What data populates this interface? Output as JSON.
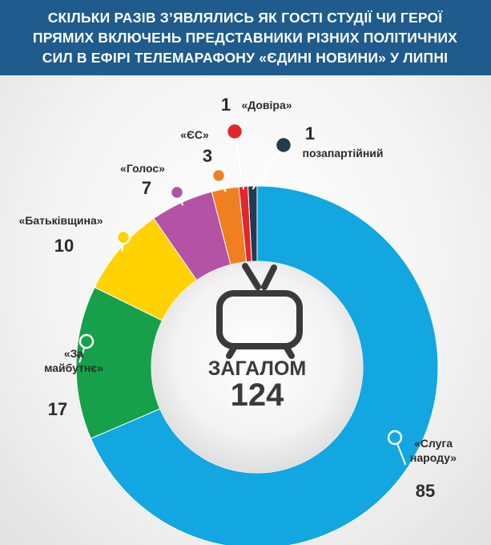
{
  "header": {
    "title_lines": [
      "СКІЛЬКИ РАЗІВ З’ЯВЛЯЛИСЬ ЯК ГОСТІ СТУДІЇ ЧИ ГЕРОЇ",
      "ПРЯМИХ ВКЛЮЧЕНЬ ПРЕДСТАВНИКИ РІЗНИХ ПОЛІТИЧНИХ",
      "СИЛ В ЕФІРІ ТЕЛЕМАРАФОНУ «ЄДИНІ НОВИНИ» У ЛИПНІ"
    ]
  },
  "center": {
    "label": "ЗАГАЛОМ",
    "total": "124",
    "icon": "tv-icon"
  },
  "colors": {
    "header_bg": "#1f5b8c",
    "sluha": "#12a7e0",
    "za_maibutnie": "#17a04a",
    "batkivshchyna": "#ffd200",
    "holos": "#b452a6",
    "yes": "#f07f21",
    "dovira": "#e3262e",
    "pozapartiinyi": "#1f3d4f"
  },
  "chart_data": {
    "type": "pie",
    "title": "СКІЛЬКИ РАЗІВ З’ЯВЛЯЛИСЬ ЯК ГОСТІ СТУДІЇ ЧИ ГЕРОЇ ПРЯМИХ ВКЛЮЧЕНЬ ПРЕДСТАВНИКИ РІЗНИХ ПОЛІТИЧНИХ СИЛ В ЕФІРІ ТЕЛЕМАРАФОНУ «ЄДИНІ НОВИНИ» У ЛИПНІ",
    "total": 124,
    "slices": [
      {
        "key": "sluha",
        "label_lines": [
          "«Слуга",
          "народу»"
        ],
        "value": 85,
        "color": "#12a7e0"
      },
      {
        "key": "za_maibutnie",
        "label_lines": [
          "«За",
          "майбутнє»"
        ],
        "value": 17,
        "color": "#17a04a"
      },
      {
        "key": "batkivshchyna",
        "label_lines": [
          "«Батьківщина»"
        ],
        "value": 10,
        "color": "#ffd200"
      },
      {
        "key": "holos",
        "label_lines": [
          "«Голос»"
        ],
        "value": 7,
        "color": "#b452a6"
      },
      {
        "key": "yes",
        "label_lines": [
          "«ЄС»"
        ],
        "value": 3,
        "color": "#f07f21"
      },
      {
        "key": "dovira",
        "label_lines": [
          "«Довіра»"
        ],
        "value": 1,
        "color": "#e3262e"
      },
      {
        "key": "pozapartiinyi",
        "label_lines": [
          "позапартійний"
        ],
        "value": 1,
        "color": "#1f3d4f"
      }
    ]
  }
}
